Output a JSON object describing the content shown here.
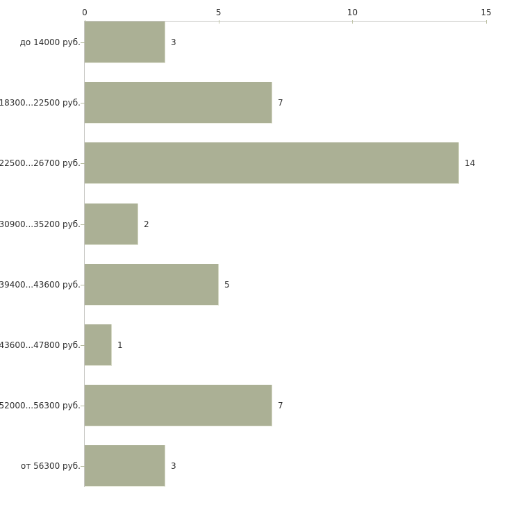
{
  "chart_data": {
    "type": "bar",
    "orientation": "horizontal",
    "title": "",
    "xlabel": "",
    "ylabel": "",
    "categories": [
      "до 14000 руб.",
      "18300...22500 руб.",
      "22500...26700 руб.",
      "30900...35200 руб.",
      "39400...43600 руб.",
      "43600...47800 руб.",
      "52000...56300 руб.",
      "от 56300 руб."
    ],
    "values": [
      3,
      7,
      14,
      2,
      5,
      1,
      7,
      3
    ],
    "value_labels": [
      "3",
      "7",
      "14",
      "2",
      "5",
      "1",
      "7",
      "3"
    ],
    "xlim": [
      0,
      15
    ],
    "x_ticks": [
      0,
      5,
      10,
      15
    ],
    "x_tick_labels": [
      "0",
      "5",
      "10",
      "15"
    ],
    "grid": false,
    "legend": false,
    "colors": {
      "bar_fill": "#abb095",
      "bar_edge_light": "#eceee2",
      "axis_line": "#c6c6c2",
      "tick_mark": "#c0c4a8",
      "category_tick": "#b3b89c",
      "text": "#2e2e2e",
      "background": "#ffffff"
    }
  }
}
